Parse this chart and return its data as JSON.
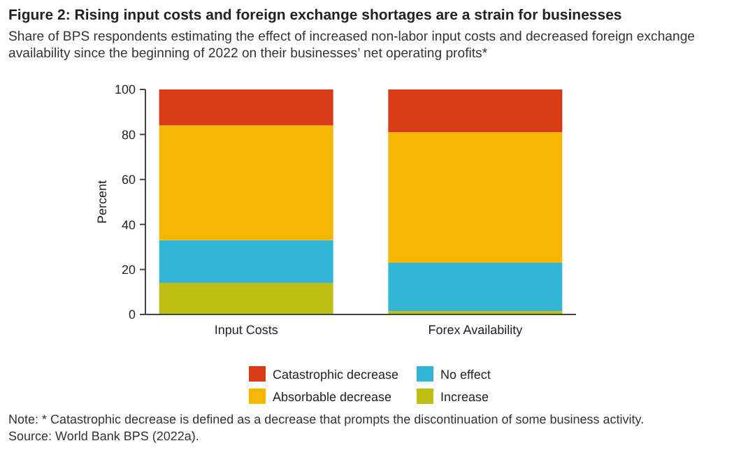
{
  "chart_data": {
    "type": "bar",
    "stacked": true,
    "title": "Figure 2: Rising input costs and foreign exchange shortages are a strain for businesses",
    "subtitle": "Share of BPS respondents estimating the effect of increased non-labor input costs and decreased foreign exchange availability since the beginning of 2022 on their businesses’ net operating profits*",
    "ylabel": "Percent",
    "categories": [
      "Input Costs",
      "Forex Availability"
    ],
    "ylim": [
      0,
      100
    ],
    "yticks": [
      0,
      20,
      40,
      60,
      80,
      100
    ],
    "grid": false,
    "legend": "bottom",
    "series": [
      {
        "name": "Increase",
        "color": "#bfbe12",
        "values": [
          14,
          1.5
        ]
      },
      {
        "name": "No effect",
        "color": "#33b6d6",
        "values": [
          19,
          21.5
        ]
      },
      {
        "name": "Absorbable decrease",
        "color": "#f5b800",
        "values": [
          51,
          58
        ]
      },
      {
        "name": "Catastrophic decrease",
        "color": "#d73c17",
        "values": [
          16,
          19
        ]
      }
    ],
    "annotations": [
      "Note: * Catastrophic decrease is defined as a decrease that prompts the discontinuation of some business activity.",
      "Source: World Bank BPS (2022a)."
    ]
  }
}
